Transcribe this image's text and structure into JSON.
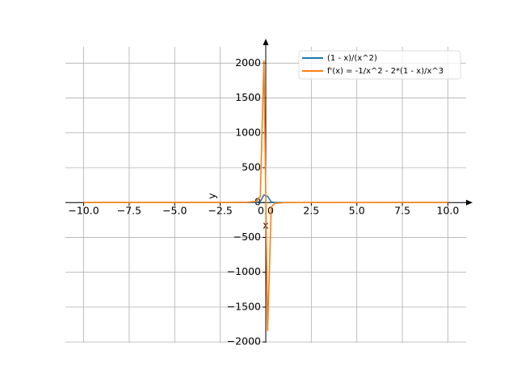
{
  "chart_data": {
    "type": "line",
    "x_label": "x",
    "y_label": "y",
    "x": [
      -10,
      -5,
      -2,
      -1,
      -0.5,
      -0.3,
      -0.101,
      0.101,
      0.3,
      0.5,
      1,
      2,
      5,
      10
    ],
    "series": [
      {
        "name": "(1 - x)/(x^2)",
        "color": "#1f77b4",
        "values": [
          0.11,
          0.24,
          0.75,
          2,
          6,
          14.4,
          109,
          88.1,
          7.78,
          2,
          0,
          -0.25,
          -0.16,
          -0.09
        ]
      },
      {
        "name": "f'(x) = -1/x^2 - 2*(1 - x)/x^3",
        "color": "#ff7f0e",
        "values": [
          0.012,
          0.056,
          0.5,
          3,
          20,
          85.2,
          2039,
          -1843,
          -63,
          -12,
          -1,
          0,
          0.024,
          0.008
        ]
      }
    ],
    "xlim": [
      -11,
      11
    ],
    "ylim": [
      -2010,
      2235
    ],
    "xticks": [
      {
        "value": -10,
        "label": "−10.0"
      },
      {
        "value": -7.5,
        "label": "−7.5"
      },
      {
        "value": -5,
        "label": "−5.0"
      },
      {
        "value": -2.5,
        "label": "−2.5"
      },
      {
        "value": 0,
        "label": "0.0"
      },
      {
        "value": 2.5,
        "label": "2.5"
      },
      {
        "value": 5,
        "label": "5.0"
      },
      {
        "value": 7.5,
        "label": "7.5"
      },
      {
        "value": 10,
        "label": "10.0"
      }
    ],
    "yticks": [
      {
        "value": -2000,
        "label": "−2000"
      },
      {
        "value": -1500,
        "label": "−1500"
      },
      {
        "value": -1000,
        "label": "−1000"
      },
      {
        "value": -500,
        "label": "−500"
      },
      0,
      500,
      1000,
      1500,
      2000
    ],
    "grid": true,
    "legend": "upper right"
  }
}
